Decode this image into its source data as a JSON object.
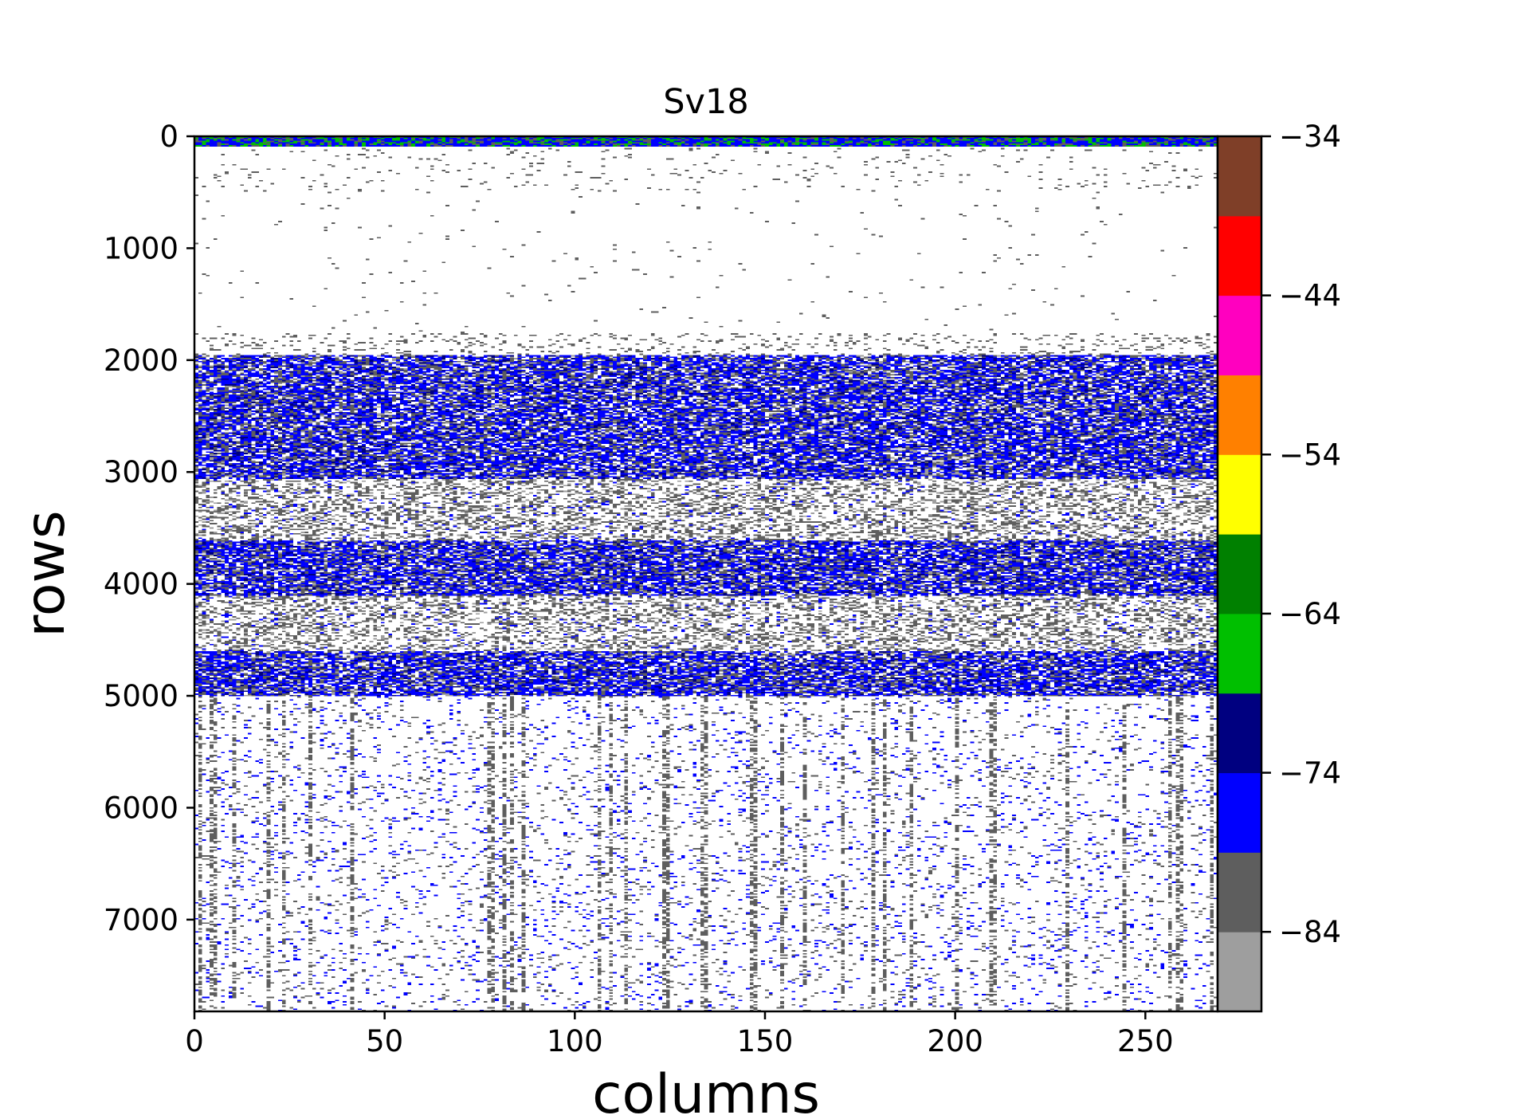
{
  "chart_data": {
    "type": "heatmap",
    "title": "Sv18",
    "xlabel": "columns",
    "ylabel": "rows",
    "xlim": [
      0,
      269
    ],
    "ylim": [
      7820,
      0
    ],
    "x_ticks": [
      0,
      50,
      100,
      150,
      200,
      250
    ],
    "y_ticks": [
      0,
      1000,
      2000,
      3000,
      4000,
      5000,
      6000,
      7000
    ],
    "grid": false,
    "colorbar": {
      "range": [
        -89,
        -34
      ],
      "ticks": [
        -34,
        -44,
        -54,
        -64,
        -74,
        -84
      ],
      "tick_labels": [
        "−34",
        "−44",
        "−54",
        "−64",
        "−74",
        "−84"
      ],
      "colors": [
        "#9e9e9e",
        "#5e5e5e",
        "#0000ff",
        "#000080",
        "#00bf00",
        "#008000",
        "#ffff00",
        "#ff8000",
        "#ff00bf",
        "#ff0000",
        "#7f3f28"
      ]
    },
    "features": [
      {
        "name": "surface band",
        "row_start": 0,
        "row_end": 90
      },
      {
        "name": "scattering layer",
        "row_start": 1950,
        "row_end": 3050
      },
      {
        "name": "scattering layer",
        "row_start": 3600,
        "row_end": 4100
      },
      {
        "name": "scattering layer",
        "row_start": 4600,
        "row_end": 5000
      }
    ]
  }
}
